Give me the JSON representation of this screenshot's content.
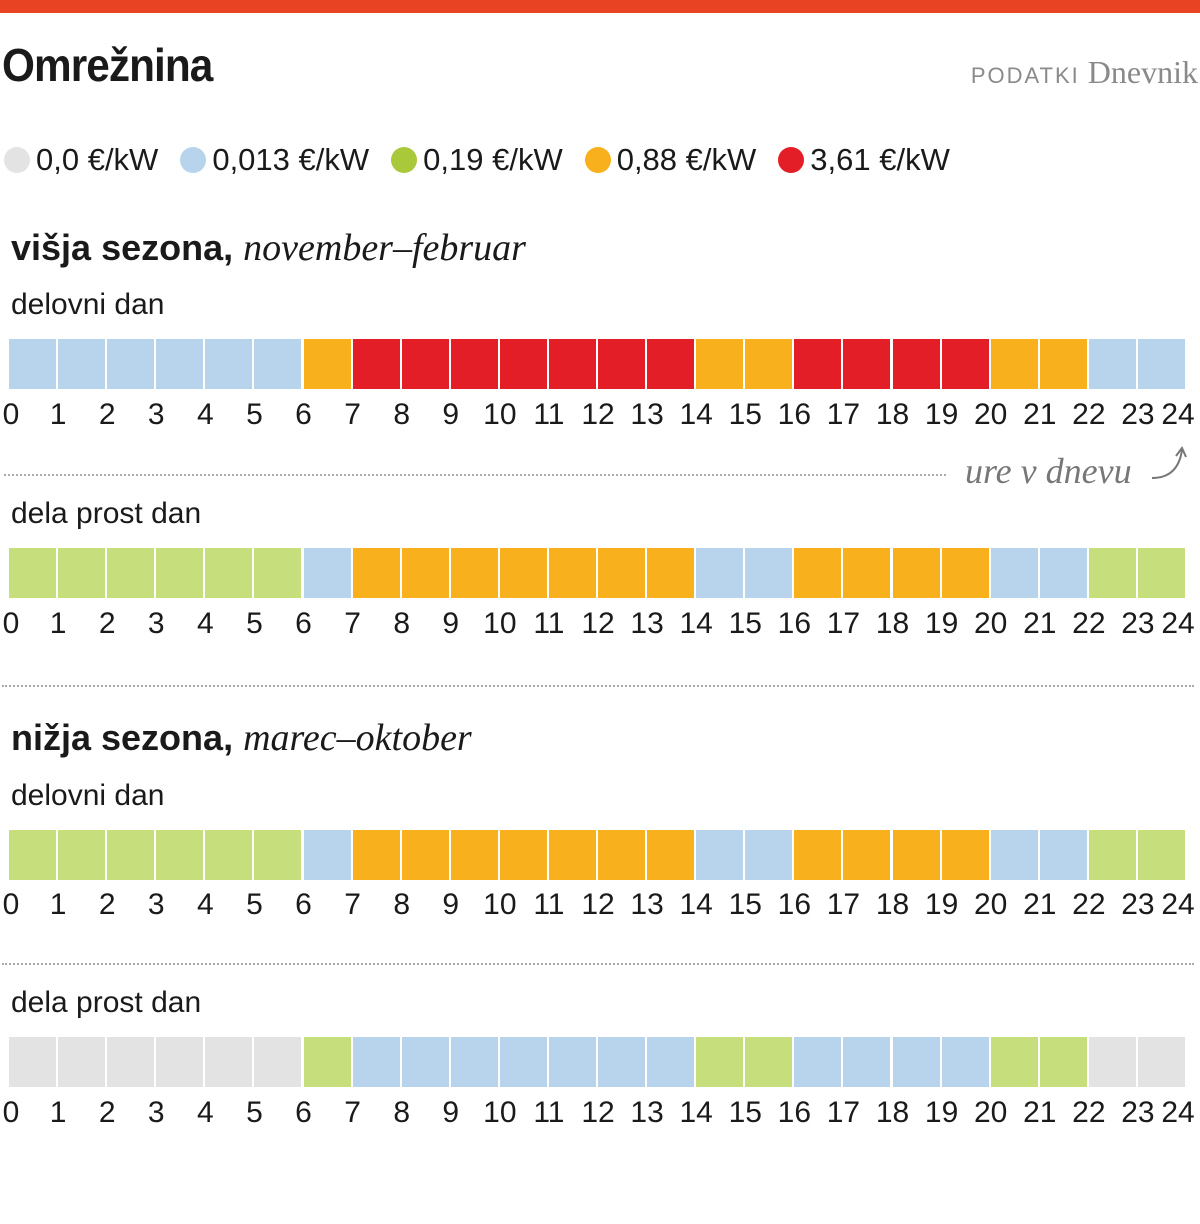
{
  "header": {
    "title": "Omrežnina",
    "source_label": "PODATKI",
    "source_name": "Dnevnik"
  },
  "legend": [
    {
      "label": "0,0 €/kW",
      "color": "#e3e3e3"
    },
    {
      "label": "0,013 €/kW",
      "color": "#b7d4ec"
    },
    {
      "label": "0,19 €/kW",
      "color": "#a9c83a"
    },
    {
      "label": "0,88 €/kW",
      "color": "#f8b01c"
    },
    {
      "label": "3,61 €/kW",
      "color": "#e31e26"
    }
  ],
  "chart_data": {
    "type": "heatmap",
    "xlabel": "ure v dnevu",
    "x_ticks": [
      "0",
      "1",
      "2",
      "3",
      "4",
      "5",
      "6",
      "7",
      "8",
      "9",
      "10",
      "11",
      "12",
      "13",
      "14",
      "15",
      "16",
      "17",
      "18",
      "19",
      "20",
      "21",
      "22",
      "23",
      "24"
    ],
    "levels": [
      "0,0 €/kW",
      "0,013 €/kW",
      "0,19 €/kW",
      "0,88 €/kW",
      "3,61 €/kW"
    ],
    "cell_colors": [
      "#e3e3e3",
      "#b7d4ec",
      "#c6de7c",
      "#f8b01c",
      "#e31e26"
    ],
    "seasons": [
      {
        "name": "višja sezona,",
        "period": "november–februar",
        "rows": [
          {
            "label": "delovni dan",
            "hours": [
              1,
              1,
              1,
              1,
              1,
              1,
              3,
              4,
              4,
              4,
              4,
              4,
              4,
              4,
              3,
              3,
              4,
              4,
              4,
              4,
              3,
              3,
              1,
              1
            ]
          },
          {
            "label": "dela prost dan",
            "hours": [
              2,
              2,
              2,
              2,
              2,
              2,
              1,
              3,
              3,
              3,
              3,
              3,
              3,
              3,
              1,
              1,
              3,
              3,
              3,
              3,
              1,
              1,
              2,
              2
            ]
          }
        ]
      },
      {
        "name": "nižja sezona,",
        "period": "marec–oktober",
        "rows": [
          {
            "label": "delovni dan",
            "hours": [
              2,
              2,
              2,
              2,
              2,
              2,
              1,
              3,
              3,
              3,
              3,
              3,
              3,
              3,
              1,
              1,
              3,
              3,
              3,
              3,
              1,
              1,
              2,
              2
            ]
          },
          {
            "label": "dela prost dan",
            "hours": [
              0,
              0,
              0,
              0,
              0,
              0,
              2,
              1,
              1,
              1,
              1,
              1,
              1,
              1,
              2,
              2,
              1,
              1,
              1,
              1,
              2,
              2,
              0,
              0
            ]
          }
        ]
      }
    ]
  }
}
